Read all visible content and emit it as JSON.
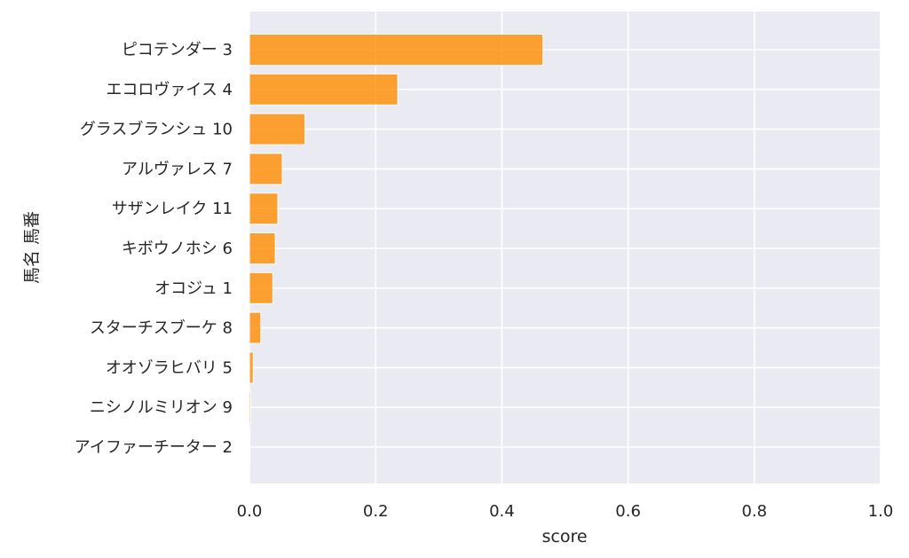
{
  "chart_data": {
    "type": "bar",
    "orientation": "horizontal",
    "categories": [
      "ピコテンダー 3",
      "エコロヴァイス 4",
      "グラスブランシュ 10",
      "アルヴァレス 7",
      "サザンレイク 11",
      "キボウノホシ 6",
      "オコジュ 1",
      "スターチスブーケ 8",
      "オオゾラヒバリ 5",
      "ニシノルミリオン 9",
      "アイファーチーター 2"
    ],
    "values": [
      0.465,
      0.235,
      0.088,
      0.052,
      0.045,
      0.041,
      0.037,
      0.018,
      0.006,
      0.002,
      0.001
    ],
    "xlabel": "score",
    "ylabel": "馬名 馬番",
    "xlim": [
      0.0,
      1.0
    ],
    "xticks": [
      "0.0",
      "0.2",
      "0.4",
      "0.6",
      "0.8",
      "1.0"
    ],
    "grid": true,
    "bar_color": "#ff8c00",
    "background_color": "#eaeaf2"
  }
}
